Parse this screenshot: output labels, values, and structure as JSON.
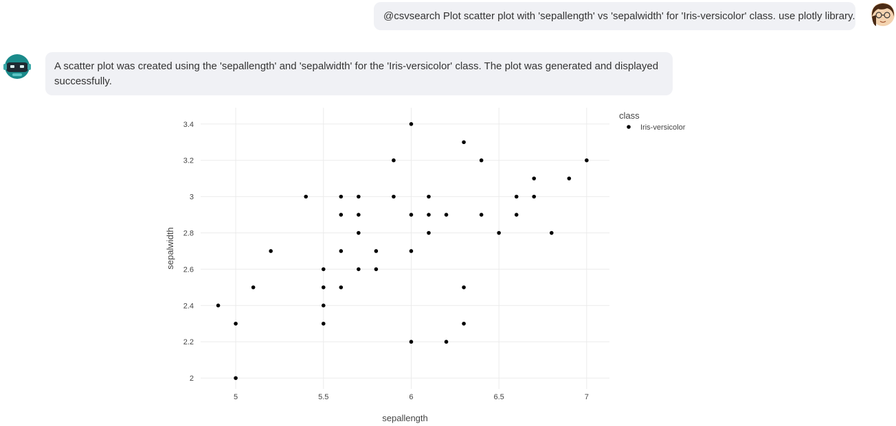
{
  "chat": {
    "user_message": "@csvsearch Plot scatter plot with 'sepallength' vs 'sepalwidth' for 'Iris-versicolor' class. use plotly library.",
    "bot_message": "A scatter plot was created using the 'sepallength' and 'sepalwidth' for the 'Iris-versicolor' class. The plot was generated and displayed successfully.",
    "user_avatar_icon": "user-avatar-icon",
    "bot_avatar_icon": "robot-avatar-icon"
  },
  "chart_data": {
    "type": "scatter",
    "xlabel": "sepallength",
    "ylabel": "sepalwidth",
    "xlim": [
      4.8,
      7.13
    ],
    "ylim": [
      1.94,
      3.49
    ],
    "xticks": [
      5,
      5.5,
      6,
      6.5,
      7
    ],
    "xtick_labels": [
      "5",
      "5.5",
      "6",
      "6.5",
      "7"
    ],
    "yticks": [
      2,
      2.2,
      2.4,
      2.6,
      2.8,
      3,
      3.2,
      3.4
    ],
    "ytick_labels": [
      "2",
      "2.2",
      "2.4",
      "2.6",
      "2.8",
      "3",
      "3.2",
      "3.4"
    ],
    "grid": true,
    "legend_title": "class",
    "legend_position": "top-right",
    "marker_color": "#000000",
    "series": [
      {
        "name": "Iris-versicolor",
        "x": [
          4.9,
          5.0,
          5.0,
          5.1,
          5.2,
          5.4,
          5.5,
          5.5,
          5.5,
          5.5,
          5.6,
          5.6,
          5.6,
          5.6,
          5.7,
          5.7,
          5.7,
          5.7,
          5.8,
          5.8,
          5.9,
          5.9,
          6.0,
          6.0,
          6.0,
          6.0,
          6.1,
          6.1,
          6.1,
          6.2,
          6.2,
          6.3,
          6.3,
          6.3,
          6.4,
          6.4,
          6.5,
          6.6,
          6.6,
          6.7,
          6.7,
          6.8,
          6.9,
          7.0
        ],
        "y": [
          2.4,
          2.3,
          2.0,
          2.5,
          2.7,
          3.0,
          2.6,
          2.5,
          2.4,
          2.3,
          3.0,
          2.9,
          2.7,
          2.5,
          3.0,
          2.9,
          2.8,
          2.6,
          2.7,
          2.6,
          3.2,
          3.0,
          3.4,
          2.9,
          2.7,
          2.2,
          3.0,
          2.9,
          2.8,
          2.9,
          2.2,
          3.3,
          2.5,
          2.3,
          3.2,
          2.9,
          2.8,
          3.0,
          2.9,
          3.1,
          3.0,
          2.8,
          3.1,
          3.2
        ]
      }
    ]
  }
}
